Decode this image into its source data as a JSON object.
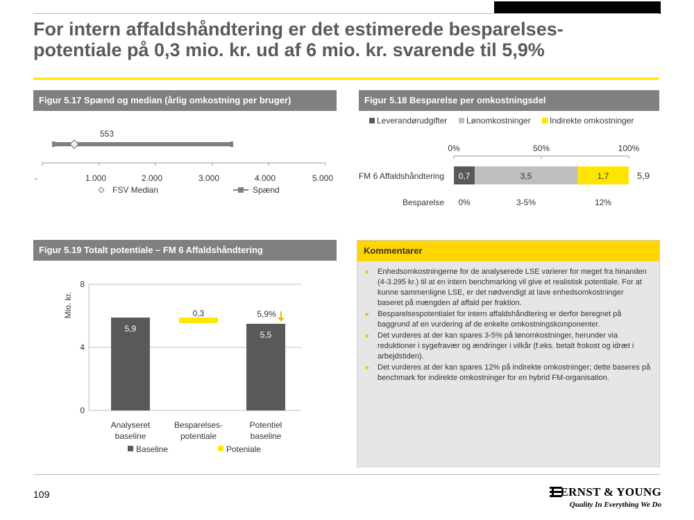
{
  "page": {
    "title": "For intern affaldshåndtering er det estimerede besparelses-potentiale på 0,3 mio. kr. ud af 6 mio. kr. svarende til 5,9%",
    "title_line1": "For intern affaldshåndtering er det estimerede besparelses-",
    "title_line2": "potentiale på 0,3 mio. kr. ud af 6 mio. kr. svarende til 5,9%",
    "page_number": "109"
  },
  "colors": {
    "accent": "#ffe600",
    "dark_gray": "#595959",
    "mid_gray": "#808080",
    "light_gray": "#bfbfbf",
    "yellow": "#ffe600"
  },
  "logo": {
    "name": "ERNST & YOUNG",
    "tagline": "Quality In Everything We Do",
    "icon": "ey-beam-icon"
  },
  "fig517": {
    "header": "Figur 5.17 Spænd og median (årlig omkostning per bruger)",
    "median_label": "553",
    "legend_median": "FSV Median",
    "legend_span": "Spænd",
    "ticks": [
      "-",
      "1.000",
      "2.000",
      "3.000",
      "4.000",
      "5.000"
    ]
  },
  "fig518": {
    "header": "Figur 5.18 Besparelse per omkostningsdel",
    "legend": [
      "Leverandørudgifter",
      "Lønomkostninger",
      "Indirekte omkostninger"
    ],
    "axis_ticks": [
      "0%",
      "50%",
      "100%"
    ],
    "row_label": "FM 6 Affaldshåndtering",
    "segment_labels": [
      "0,7",
      "3,5",
      "1,7"
    ],
    "total": "5,9",
    "savings_label": "Besparelse",
    "savings": [
      "0%",
      "3-5%",
      "12%"
    ]
  },
  "fig519": {
    "header": "Figur 5.19 Totalt potentiale – FM 6 Affaldshåndtering",
    "ylabel": "Mio. kr.",
    "yticks": [
      "8",
      "4",
      "0"
    ],
    "bar_labels": [
      "5,9",
      "0,3",
      "5,5"
    ],
    "pct_label": "5,9%",
    "cat1_l1": "Analyseret",
    "cat1_l2": "baseline",
    "cat2_l1": "Besparelses-",
    "cat2_l2": "potentiale",
    "cat3_l1": "Potentiel",
    "cat3_l2": "baseline",
    "legend": [
      "Baseline",
      "Poteniale"
    ]
  },
  "comments": {
    "header": "Kommentarer",
    "items": [
      "Enhedsomkostningerne for de analyserede LSE varierer for meget fra hinanden (4-3.295 kr.) til at en intern benchmarking vil give et realistisk potentiale. For at kunne sammenligne LSE, er det nødvendigt at lave enhedsomkostninger baseret på mængden af affald per fraktion.",
      "Besparelsespotentialet for intern affaldshåndtering er derfor beregnet på baggrund af en vurdering af de enkelte omkostningskomponenter.",
      "Det vurderes at der kan spares 3-5% på lønomkostninger, herunder via reduktioner i sygefravær og ændringer i vilkår (f.eks. betalt frokost og idræt i arbejdstiden).",
      "Det vurderes at der kan spares 12% på indirekte omkostninger; dette baseres på benchmark for indirekte omkostninger for en hybrid FM-organisation."
    ]
  },
  "chart_data": [
    {
      "type": "range",
      "title": "Figur 5.17 Spænd og median (årlig omkostning per bruger)",
      "series": [
        {
          "name": "Spænd",
          "values": [
            4,
            3295
          ]
        },
        {
          "name": "FSV Median",
          "values": [
            553
          ]
        }
      ],
      "xlim": [
        0,
        5000
      ],
      "x_ticks": [
        "-",
        "1.000",
        "2.000",
        "3.000",
        "4.000",
        "5.000"
      ]
    },
    {
      "type": "bar",
      "orientation": "horizontal-stacked",
      "title": "Figur 5.18 Besparelse per omkostningsdel",
      "categories": [
        "FM 6 Affaldshåndtering"
      ],
      "series": [
        {
          "name": "Leverandørudgifter",
          "values": [
            0.7
          ]
        },
        {
          "name": "Lønomkostninger",
          "values": [
            3.5
          ]
        },
        {
          "name": "Indirekte omkostninger",
          "values": [
            1.7
          ]
        }
      ],
      "total": 5.9,
      "savings": [
        "0%",
        "3-5%",
        "12%"
      ]
    },
    {
      "type": "bar",
      "title": "Figur 5.19 Totalt potentiale – FM 6 Affaldshåndtering",
      "categories": [
        "Analyseret baseline",
        "Besparelses-potentiale",
        "Potentiel baseline"
      ],
      "series": [
        {
          "name": "Baseline",
          "values": [
            5.9,
            null,
            5.5
          ]
        },
        {
          "name": "Poteniale",
          "values": [
            null,
            0.3,
            null
          ]
        }
      ],
      "ylabel": "Mio. kr.",
      "ylim": [
        0,
        8
      ],
      "annotation": "5,9%"
    }
  ]
}
